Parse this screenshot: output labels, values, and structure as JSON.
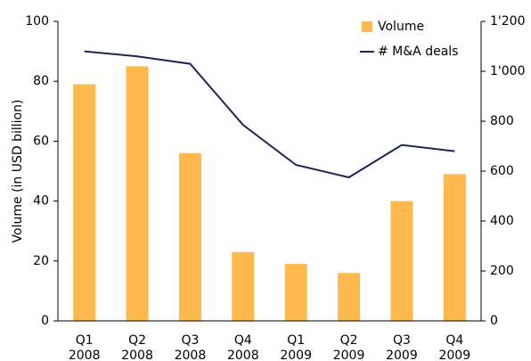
{
  "chart_data": {
    "type": "bar+line",
    "categories": [
      [
        "Q1",
        "2008"
      ],
      [
        "Q2",
        "2008"
      ],
      [
        "Q3",
        "2008"
      ],
      [
        "Q4",
        "2008"
      ],
      [
        "Q1",
        "2009"
      ],
      [
        "Q2",
        "2009"
      ],
      [
        "Q3",
        "2009"
      ],
      [
        "Q4",
        "2009"
      ]
    ],
    "series": [
      {
        "name": "Volume",
        "type": "bar",
        "color": "#fdb94e",
        "values": [
          79,
          85,
          56,
          23,
          19,
          16,
          40,
          49
        ]
      },
      {
        "name": "# M&A deals",
        "type": "line",
        "axis": "y2",
        "color": "#1a2456",
        "values": [
          1080,
          1060,
          1030,
          785,
          625,
          575,
          705,
          680
        ]
      }
    ],
    "ylabel": "Volume (in USD billion)",
    "ylim": [
      0,
      100
    ],
    "yticks": [
      0,
      20,
      40,
      60,
      80,
      100
    ],
    "y2lim": [
      0,
      1200
    ],
    "y2ticks": [
      0,
      200,
      400,
      600,
      800,
      {
        "value": 1000,
        "label": "1'000"
      },
      {
        "value": 1200,
        "label": "1'200"
      }
    ],
    "grid": false,
    "legend": "top-right"
  }
}
